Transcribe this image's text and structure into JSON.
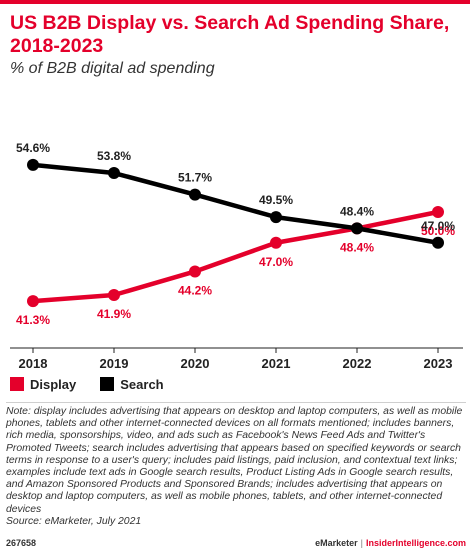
{
  "colors": {
    "accent": "#e4002b",
    "display": "#e4002b",
    "search": "#000000"
  },
  "chart_data": {
    "type": "line",
    "title": "US B2B Display vs. Search Ad Spending Share, 2018-2023",
    "subtitle": "% of B2B digital ad spending",
    "categories": [
      "2018",
      "2019",
      "2020",
      "2021",
      "2022",
      "2023"
    ],
    "series": [
      {
        "name": "Display",
        "color": "#e4002b",
        "values": [
          41.3,
          41.9,
          44.2,
          47.0,
          48.4,
          50.0
        ]
      },
      {
        "name": "Search",
        "color": "#000000",
        "values": [
          54.6,
          53.8,
          51.7,
          49.5,
          48.4,
          47.0
        ]
      }
    ],
    "value_suffix": "%",
    "ylim": [
      38,
      58
    ],
    "grid": false,
    "legend_position": "bottom-left"
  },
  "note": {
    "text": "Note: display includes advertising that appears on desktop and laptop computers, as well as mobile phones, tablets and other internet-connected devices on all formats mentioned; includes banners, rich media, sponsorships, video, and ads such as Facebook's News Feed Ads and Twitter's Promoted Tweets; search includes advertising that appears based on specified keywords or search terms in response to a user's query; includes paid listings, paid inclusion, and contextual text links; examples include text ads in Google search results, Product Listing Ads in Google search results, and Amazon Sponsored Products and Sponsored Brands; includes advertising that appears on desktop and laptop computers, as well as mobile phones, tablets, and other internet-connected devices",
    "source": "Source: eMarketer, July 2021"
  },
  "footer": {
    "chart_id": "267658",
    "brand": "eMarketer",
    "separator": "|",
    "brand2": "InsiderIntelligence.com"
  }
}
